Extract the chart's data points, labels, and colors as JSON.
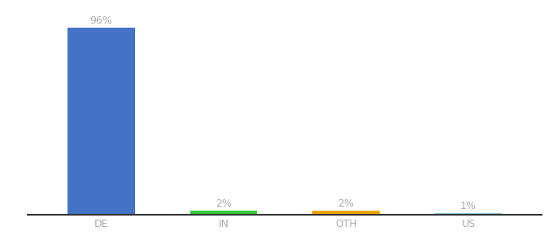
{
  "categories": [
    "DE",
    "IN",
    "OTH",
    "US"
  ],
  "values": [
    96,
    2,
    2,
    1
  ],
  "labels": [
    "96%",
    "2%",
    "2%",
    "1%"
  ],
  "bar_colors": [
    "#4472c4",
    "#33cc33",
    "#f0a500",
    "#87ceeb"
  ],
  "background_color": "#ffffff",
  "ylim": [
    0,
    100
  ],
  "bar_width": 0.55,
  "label_fontsize": 9,
  "tick_fontsize": 9,
  "label_color": "#aaaaaa",
  "tick_color": "#aaaaaa"
}
